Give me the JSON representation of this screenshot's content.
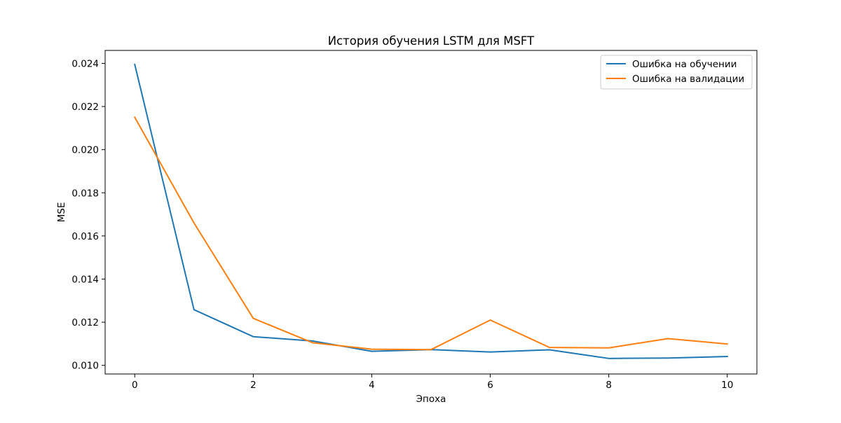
{
  "chart_data": {
    "type": "line",
    "title": "История обучения LSTM для MSFT",
    "xlabel": "Эпоха",
    "ylabel": "MSE",
    "xlim": [
      -0.5,
      10.5
    ],
    "ylim": [
      0.0096,
      0.0246
    ],
    "x_ticks": [
      0,
      2,
      4,
      6,
      8,
      10
    ],
    "x_tick_labels": [
      "0",
      "2",
      "4",
      "6",
      "8",
      "10"
    ],
    "y_ticks": [
      0.01,
      0.012,
      0.014,
      0.016,
      0.018,
      0.02,
      0.022,
      0.024
    ],
    "y_tick_labels": [
      "0.010",
      "0.012",
      "0.014",
      "0.016",
      "0.018",
      "0.020",
      "0.022",
      "0.024"
    ],
    "grid": false,
    "legend_position": "top-right",
    "x": [
      0,
      1,
      2,
      3,
      4,
      5,
      6,
      7,
      8,
      9,
      10
    ],
    "series": [
      {
        "name": "Ошибка на обучении",
        "color": "#1f77b4",
        "values": [
          0.02395,
          0.01258,
          0.01133,
          0.01113,
          0.01065,
          0.01073,
          0.01062,
          0.01072,
          0.01032,
          0.01034,
          0.01041
        ]
      },
      {
        "name": "Ошибка на валидации",
        "color": "#ff7f0e",
        "values": [
          0.0215,
          0.0166,
          0.01218,
          0.01105,
          0.01075,
          0.01073,
          0.0121,
          0.01083,
          0.01081,
          0.01124,
          0.01099
        ]
      }
    ]
  }
}
